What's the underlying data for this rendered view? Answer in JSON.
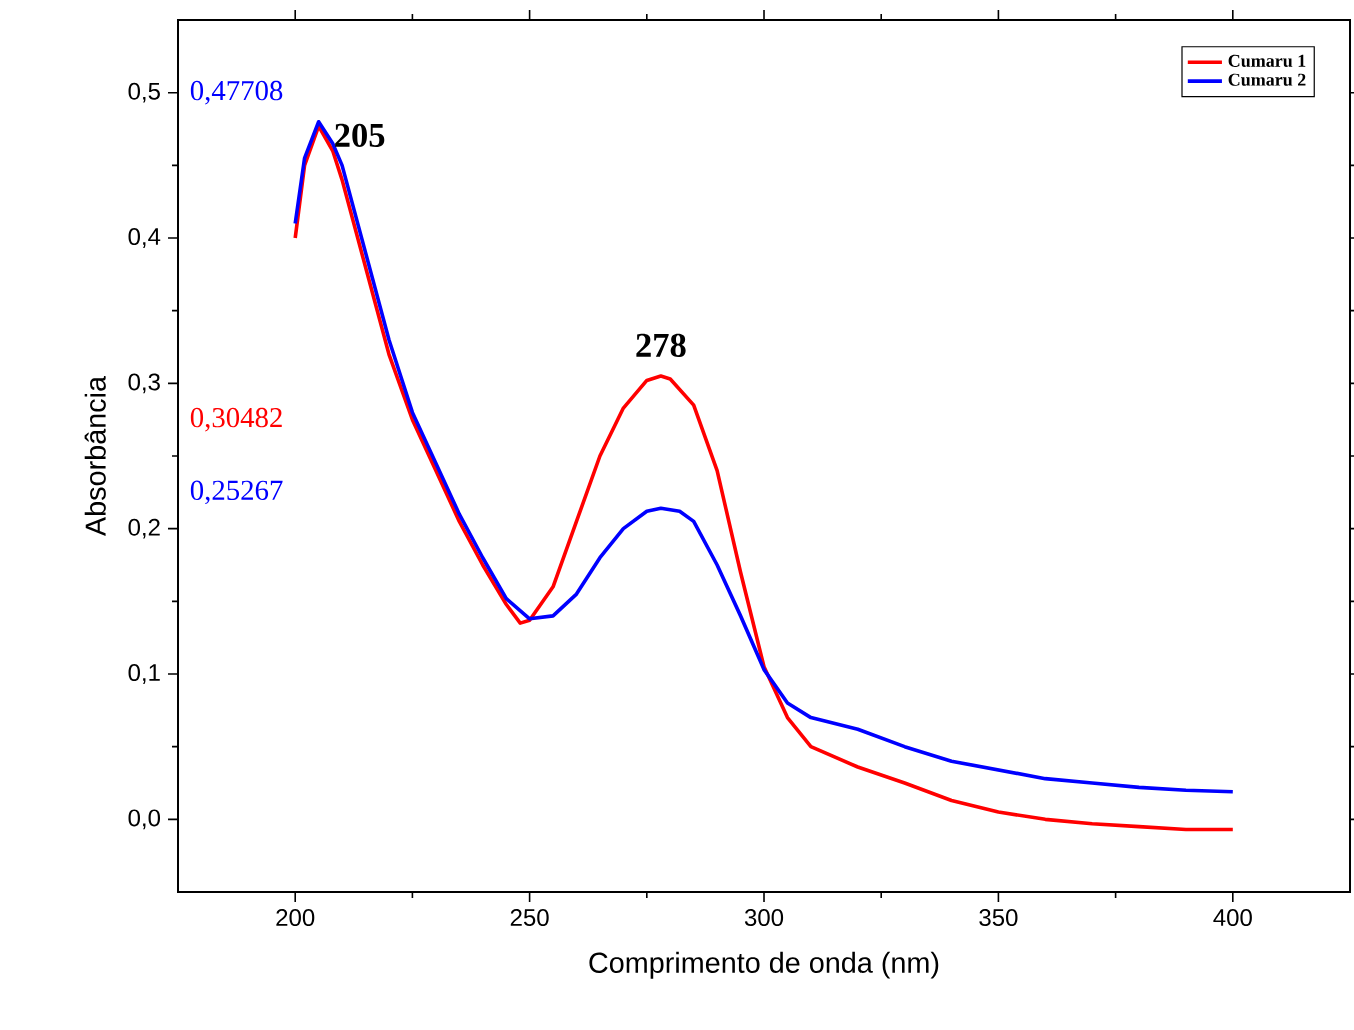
{
  "chart_data": {
    "type": "line",
    "xlabel": "Comprimento de onda (nm)",
    "ylabel": "Absorbância",
    "xlim": [
      175,
      425
    ],
    "ylim": [
      -0.05,
      0.55
    ],
    "xticks": [
      200,
      250,
      300,
      350,
      400
    ],
    "yticks": [
      {
        "value": 0,
        "label": "0,0"
      },
      {
        "value": 0.1,
        "label": "0,1"
      },
      {
        "value": 0.2,
        "label": "0,2"
      },
      {
        "value": 0.3,
        "label": "0,3"
      },
      {
        "value": 0.4,
        "label": "0,4"
      },
      {
        "value": 0.5,
        "label": "0,5"
      }
    ],
    "legend": "top right",
    "series": [
      {
        "name": "Cumaru 1",
        "color": "#ff0000",
        "x": [
          200,
          202,
          205,
          208,
          210,
          215,
          220,
          225,
          230,
          235,
          240,
          245,
          248,
          250,
          255,
          260,
          265,
          270,
          275,
          278,
          280,
          285,
          290,
          295,
          300,
          305,
          310,
          320,
          330,
          340,
          350,
          360,
          370,
          380,
          390,
          400
        ],
        "values": [
          0.4,
          0.45,
          0.477,
          0.46,
          0.44,
          0.38,
          0.32,
          0.275,
          0.24,
          0.205,
          0.175,
          0.148,
          0.135,
          0.137,
          0.16,
          0.205,
          0.25,
          0.283,
          0.302,
          0.305,
          0.303,
          0.285,
          0.24,
          0.17,
          0.105,
          0.07,
          0.05,
          0.036,
          0.025,
          0.013,
          0.005,
          0.0,
          -0.003,
          -0.005,
          -0.007,
          -0.007
        ]
      },
      {
        "name": "Cumaru 2",
        "color": "#0000ff",
        "x": [
          200,
          202,
          205,
          208,
          210,
          215,
          220,
          225,
          230,
          235,
          240,
          245,
          250,
          255,
          260,
          265,
          270,
          275,
          278,
          282,
          285,
          290,
          295,
          300,
          305,
          310,
          320,
          330,
          340,
          350,
          360,
          370,
          380,
          390,
          400
        ],
        "values": [
          0.41,
          0.455,
          0.48,
          0.465,
          0.45,
          0.39,
          0.33,
          0.28,
          0.245,
          0.21,
          0.18,
          0.152,
          0.138,
          0.14,
          0.155,
          0.18,
          0.2,
          0.212,
          0.214,
          0.212,
          0.205,
          0.175,
          0.14,
          0.103,
          0.08,
          0.07,
          0.062,
          0.05,
          0.04,
          0.034,
          0.028,
          0.025,
          0.022,
          0.02,
          0.019
        ]
      }
    ],
    "annotations": [
      {
        "text": "205",
        "x": 205,
        "y": 0.477
      },
      {
        "text": "278",
        "x": 278,
        "y": 0.305
      },
      "0,47708",
      "0,30482",
      "0,25267"
    ]
  }
}
